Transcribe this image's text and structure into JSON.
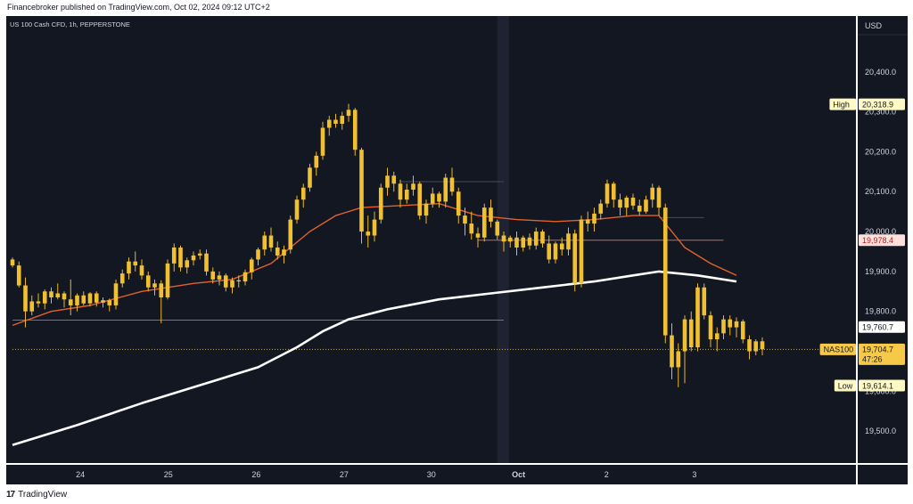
{
  "header": {
    "published_text": "Financebroker published on TradingView.com, Oct 02, 2024 09:12 UTC+2"
  },
  "footer": {
    "brand": "TradingView"
  },
  "chart_data": {
    "type": "candlestick",
    "symbol_title": "US 100 Cash CFD, 1h, PEPPERSTONE",
    "currency": "USD",
    "ylim": [
      19420,
      20540
    ],
    "y_ticks": [
      {
        "value": 20400,
        "label": "20,400.0"
      },
      {
        "value": 20300,
        "label": "20,300.0"
      },
      {
        "value": 20200,
        "label": "20,200.0"
      },
      {
        "value": 20100,
        "label": "20,100.0"
      },
      {
        "value": 20000,
        "label": "20,000.0"
      },
      {
        "value": 19900,
        "label": "19,900.0"
      },
      {
        "value": 19800,
        "label": "19,800.0"
      },
      {
        "value": 19600,
        "label": "19,600.0"
      },
      {
        "value": 19500,
        "label": "19,500.0"
      }
    ],
    "x_ticks": [
      {
        "t": 10.5,
        "label": "24"
      },
      {
        "t": 24.1,
        "label": "25"
      },
      {
        "t": 37.7,
        "label": "26"
      },
      {
        "t": 51.3,
        "label": "27"
      },
      {
        "t": 64.8,
        "label": "30"
      },
      {
        "t": 78.3,
        "label": "Oct"
      },
      {
        "t": 91.9,
        "label": "2"
      },
      {
        "t": 105.5,
        "label": "3"
      }
    ],
    "price_labels": [
      {
        "kind": "high",
        "tag": "High",
        "value": 20318.9,
        "label": "20,318.9",
        "bg": "#fff9c4",
        "fg": "#131722"
      },
      {
        "kind": "level",
        "tag": "",
        "value": 19978.4,
        "label": "19,978.4",
        "bg": "#fde0dc",
        "fg": "#b71c1c"
      },
      {
        "kind": "level",
        "tag": "",
        "value": 19760.7,
        "label": "19,760.7",
        "bg": "#ffffff",
        "fg": "#131722"
      },
      {
        "kind": "current",
        "tag": "NAS100",
        "value": 19704.7,
        "label": "19,704.7",
        "countdown": "47:26",
        "bg": "#f7c948",
        "fg": "#131722"
      },
      {
        "kind": "low",
        "tag": "Low",
        "value": 19614.1,
        "label": "19,614.1",
        "bg": "#fff9c4",
        "fg": "#131722"
      }
    ],
    "candles": [
      [
        19930,
        19935,
        19910,
        19915
      ],
      [
        19915,
        19925,
        19860,
        19865
      ],
      [
        19865,
        19885,
        19760,
        19800
      ],
      [
        19800,
        19840,
        19790,
        19825
      ],
      [
        19825,
        19845,
        19810,
        19820
      ],
      [
        19820,
        19855,
        19805,
        19850
      ],
      [
        19850,
        19860,
        19820,
        19835
      ],
      [
        19835,
        19870,
        19830,
        19845
      ],
      [
        19845,
        19850,
        19810,
        19830
      ],
      [
        19830,
        19880,
        19790,
        19815
      ],
      [
        19815,
        19845,
        19800,
        19840
      ],
      [
        19840,
        19850,
        19815,
        19820
      ],
      [
        19820,
        19848,
        19812,
        19845
      ],
      [
        19845,
        19850,
        19812,
        19822
      ],
      [
        19822,
        19835,
        19810,
        19828
      ],
      [
        19828,
        19832,
        19800,
        19815
      ],
      [
        19815,
        19880,
        19805,
        19870
      ],
      [
        19870,
        19905,
        19860,
        19895
      ],
      [
        19895,
        19935,
        19880,
        19925
      ],
      [
        19925,
        19950,
        19900,
        19915
      ],
      [
        19915,
        19930,
        19880,
        19890
      ],
      [
        19890,
        19900,
        19850,
        19860
      ],
      [
        19860,
        19880,
        19840,
        19870
      ],
      [
        19870,
        19878,
        19770,
        19835
      ],
      [
        19835,
        19930,
        19830,
        19920
      ],
      [
        19920,
        19970,
        19900,
        19960
      ],
      [
        19960,
        19965,
        19900,
        19910
      ],
      [
        19910,
        19935,
        19895,
        19928
      ],
      [
        19928,
        19950,
        19915,
        19940
      ],
      [
        19940,
        19955,
        19930,
        19945
      ],
      [
        19945,
        19955,
        19890,
        19900
      ],
      [
        19900,
        19910,
        19870,
        19880
      ],
      [
        19880,
        19900,
        19865,
        19890
      ],
      [
        19890,
        19895,
        19850,
        19860
      ],
      [
        19860,
        19885,
        19845,
        19878
      ],
      [
        19878,
        19890,
        19860,
        19875
      ],
      [
        19875,
        19905,
        19865,
        19898
      ],
      [
        19898,
        19935,
        19880,
        19930
      ],
      [
        19930,
        19960,
        19915,
        19955
      ],
      [
        19955,
        20000,
        19940,
        19990
      ],
      [
        19990,
        20010,
        19950,
        19960
      ],
      [
        19960,
        19975,
        19930,
        19940
      ],
      [
        19940,
        19965,
        19920,
        19955
      ],
      [
        19955,
        20040,
        19945,
        20030
      ],
      [
        20030,
        20090,
        20020,
        20080
      ],
      [
        20080,
        20120,
        20060,
        20110
      ],
      [
        20110,
        20170,
        20100,
        20160
      ],
      [
        20160,
        20200,
        20140,
        20190
      ],
      [
        20190,
        20275,
        20180,
        20260
      ],
      [
        20260,
        20290,
        20240,
        20280
      ],
      [
        20280,
        20295,
        20260,
        20270
      ],
      [
        20270,
        20300,
        20255,
        20290
      ],
      [
        20290,
        20320,
        20275,
        20305
      ],
      [
        20305,
        20310,
        20190,
        20205
      ],
      [
        20205,
        20210,
        19970,
        20000
      ],
      [
        20000,
        20040,
        19960,
        19990
      ],
      [
        19990,
        20050,
        19975,
        20030
      ],
      [
        20030,
        20120,
        20020,
        20110
      ],
      [
        20110,
        20160,
        20090,
        20140
      ],
      [
        20140,
        20150,
        20100,
        20120
      ],
      [
        20120,
        20130,
        20060,
        20080
      ],
      [
        20080,
        20120,
        20070,
        20105
      ],
      [
        20105,
        20140,
        20090,
        20120
      ],
      [
        20120,
        20125,
        20030,
        20040
      ],
      [
        20040,
        20080,
        20020,
        20070
      ],
      [
        20070,
        20110,
        20060,
        20095
      ],
      [
        20095,
        20100,
        20060,
        20075
      ],
      [
        20075,
        20145,
        20060,
        20135
      ],
      [
        20135,
        20160,
        20090,
        20100
      ],
      [
        20100,
        20110,
        20020,
        20040
      ],
      [
        20040,
        20060,
        19990,
        20020
      ],
      [
        20020,
        20050,
        19980,
        19995
      ],
      [
        19995,
        20010,
        19960,
        19985
      ],
      [
        19985,
        20070,
        19975,
        20060
      ],
      [
        20060,
        20080,
        20010,
        20025
      ],
      [
        20025,
        20030,
        19980,
        19990
      ],
      [
        19990,
        20000,
        19950,
        19975
      ],
      [
        19975,
        19990,
        19960,
        19985
      ],
      [
        19985,
        20000,
        19940,
        19960
      ],
      [
        19960,
        19990,
        19950,
        19985
      ],
      [
        19985,
        19995,
        19955,
        19965
      ],
      [
        19965,
        20010,
        19955,
        20000
      ],
      [
        20000,
        20005,
        19960,
        19970
      ],
      [
        19970,
        19990,
        19920,
        19930
      ],
      [
        19930,
        19975,
        19920,
        19970
      ],
      [
        19970,
        19985,
        19940,
        19955
      ],
      [
        19955,
        20010,
        19940,
        19995
      ],
      [
        19995,
        20005,
        19850,
        19870
      ],
      [
        19870,
        20040,
        19860,
        20030
      ],
      [
        20030,
        20050,
        20000,
        20020
      ],
      [
        20020,
        20060,
        20000,
        20045
      ],
      [
        20045,
        20080,
        20030,
        20070
      ],
      [
        20070,
        20130,
        20060,
        20120
      ],
      [
        20120,
        20125,
        20060,
        20080
      ],
      [
        20080,
        20095,
        20040,
        20060
      ],
      [
        20060,
        20090,
        20040,
        20085
      ],
      [
        20085,
        20095,
        20055,
        20065
      ],
      [
        20065,
        20080,
        20040,
        20050
      ],
      [
        20050,
        20090,
        20045,
        20080
      ],
      [
        20080,
        20120,
        20060,
        20110
      ],
      [
        20110,
        20115,
        20040,
        20060
      ],
      [
        20060,
        20070,
        19720,
        19740
      ],
      [
        19740,
        19770,
        19630,
        19660
      ],
      [
        19660,
        19720,
        19610,
        19700
      ],
      [
        19700,
        19790,
        19620,
        19780
      ],
      [
        19780,
        19800,
        19700,
        19710
      ],
      [
        19710,
        19870,
        19700,
        19860
      ],
      [
        19860,
        19870,
        19780,
        19790
      ],
      [
        19790,
        19800,
        19710,
        19730
      ],
      [
        19730,
        19760,
        19700,
        19745
      ],
      [
        19745,
        19790,
        19730,
        19780
      ],
      [
        19780,
        19790,
        19740,
        19760
      ],
      [
        19760,
        19785,
        19735,
        19775
      ],
      [
        19775,
        19780,
        19720,
        19730
      ],
      [
        19730,
        19740,
        19680,
        19700
      ],
      [
        19700,
        19730,
        19690,
        19725
      ],
      [
        19725,
        19735,
        19690,
        19705
      ]
    ],
    "ma_short": [
      [
        0,
        19765
      ],
      [
        6,
        19800
      ],
      [
        12,
        19815
      ],
      [
        20,
        19850
      ],
      [
        28,
        19870
      ],
      [
        34,
        19880
      ],
      [
        40,
        19920
      ],
      [
        46,
        20000
      ],
      [
        50,
        20040
      ],
      [
        54,
        20060
      ],
      [
        60,
        20065
      ],
      [
        66,
        20070
      ],
      [
        72,
        20040
      ],
      [
        78,
        20030
      ],
      [
        84,
        20025
      ],
      [
        90,
        20030
      ],
      [
        96,
        20040
      ],
      [
        100,
        20040
      ],
      [
        104,
        19960
      ],
      [
        108,
        19920
      ],
      [
        112,
        19890
      ]
    ],
    "ma_long": [
      [
        0,
        19465
      ],
      [
        10,
        19515
      ],
      [
        20,
        19570
      ],
      [
        30,
        19620
      ],
      [
        38,
        19660
      ],
      [
        44,
        19710
      ],
      [
        48,
        19750
      ],
      [
        52,
        19780
      ],
      [
        58,
        19805
      ],
      [
        66,
        19830
      ],
      [
        74,
        19845
      ],
      [
        82,
        19860
      ],
      [
        90,
        19875
      ],
      [
        96,
        19890
      ],
      [
        100,
        19900
      ],
      [
        106,
        19890
      ],
      [
        112,
        19875
      ]
    ],
    "hlines": [
      {
        "value": 19978.4,
        "x_from": 72,
        "x_to": 110,
        "color": "#c26a5e"
      },
      {
        "value": 19778,
        "x_from": 0,
        "x_to": 76,
        "color": "#a86060"
      },
      {
        "value": 19704.7,
        "x_from": 0,
        "x_to": 126,
        "color": "#c8b25a",
        "dashed": true
      },
      {
        "value": 20035,
        "x_from": 100,
        "x_to": 107,
        "color": "#444b5c"
      },
      {
        "value": 20125,
        "x_from": 60,
        "x_to": 76,
        "color": "#444b5c"
      }
    ],
    "session_highlight": {
      "x_from": 75,
      "x_to": 76.8
    },
    "colors": {
      "background": "#131722",
      "candle_body": "#f0c030",
      "candle_wick": "#e6b82a",
      "ma_short": "#e0622c",
      "ma_long": "#ffffff",
      "axis_text": "#d1d4dc"
    }
  }
}
